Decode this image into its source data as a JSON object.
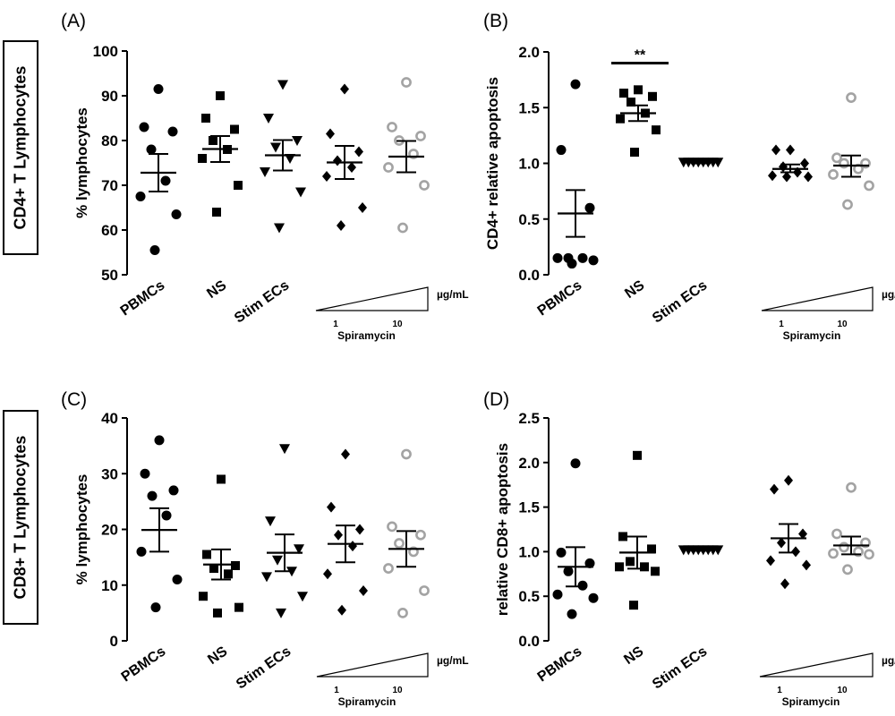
{
  "row_labels": {
    "top": "CD4+ T Lymphocytes",
    "bottom": "CD8+ T Lymphocytes"
  },
  "group_labels": [
    "PBMCs",
    "NS",
    "Stim ECs"
  ],
  "spiramycin": {
    "unit": "µg/mL",
    "low": "1",
    "high": "10",
    "label": "Spiramycin"
  },
  "colors": {
    "black": "#000000",
    "gray": "#a3a3a3"
  },
  "chart_data": [
    {
      "panel": "(A)",
      "type": "scatter",
      "ylabel": "% lymphocytes",
      "ylim": [
        50,
        100
      ],
      "yticks": [
        "50",
        "60",
        "70",
        "80",
        "90",
        "100"
      ],
      "series": [
        {
          "name": "PBMCs",
          "marker": "circle",
          "values": [
            91.5,
            83,
            82,
            78,
            71,
            67.5,
            63.5,
            55.5
          ],
          "mean": 72.8,
          "sem_low": 68.6,
          "sem_high": 77
        },
        {
          "name": "NS",
          "marker": "square",
          "values": [
            90,
            85,
            82.5,
            80,
            78,
            76,
            70,
            64
          ],
          "mean": 78.1,
          "sem_low": 75.2,
          "sem_high": 81
        },
        {
          "name": "Stim ECs",
          "marker": "triangle-down",
          "values": [
            92.5,
            85,
            80,
            78.5,
            76,
            73,
            68.5,
            60.5
          ],
          "mean": 76.7,
          "sem_low": 73.3,
          "sem_high": 80.1
        },
        {
          "name": "Spiramycin 1",
          "marker": "diamond",
          "values": [
            91.5,
            81.5,
            77.5,
            75.5,
            74,
            72,
            65,
            61
          ],
          "mean": 75.1,
          "sem_low": 71.4,
          "sem_high": 78.8
        },
        {
          "name": "Spiramycin 10",
          "marker": "open-circle",
          "values": [
            93,
            83,
            81,
            80,
            77,
            74,
            70,
            60.5
          ],
          "mean": 76.4,
          "sem_low": 72.9,
          "sem_high": 79.9
        }
      ]
    },
    {
      "panel": "(B)",
      "type": "scatter",
      "ylabel": "CD4+ relative apoptosis",
      "ylim": [
        0,
        2
      ],
      "yticks": [
        "0.0",
        "0.5",
        "1.0",
        "1.5",
        "2.0"
      ],
      "significance": {
        "label": "**",
        "from": 0,
        "to": 1,
        "y": 1.9
      },
      "series": [
        {
          "name": "PBMCs",
          "marker": "circle",
          "values": [
            1.71,
            1.12,
            0.6,
            0.15,
            0.15,
            0.15,
            0.13,
            0.1
          ],
          "mean": 0.55,
          "sem_low": 0.34,
          "sem_high": 0.76
        },
        {
          "name": "NS",
          "marker": "square",
          "values": [
            1.66,
            1.63,
            1.6,
            1.55,
            1.45,
            1.4,
            1.3,
            1.1
          ],
          "mean": 1.45,
          "sem_low": 1.38,
          "sem_high": 1.52
        },
        {
          "name": "Stim ECs",
          "marker": "triangle-down",
          "values": [
            1.01,
            1.01,
            1.01,
            1.01,
            1.01,
            1.01,
            1.01,
            1.01
          ],
          "mean": 1.01,
          "sem_low": 1.0,
          "sem_high": 1.02
        },
        {
          "name": "Spiramycin 1",
          "marker": "diamond",
          "values": [
            1.12,
            1.12,
            1.0,
            0.97,
            0.92,
            0.89,
            0.88,
            0.88
          ],
          "mean": 0.95,
          "sem_low": 0.92,
          "sem_high": 0.99
        },
        {
          "name": "Spiramycin 10",
          "marker": "open-circle",
          "values": [
            1.59,
            1.05,
            1.0,
            1.0,
            0.95,
            0.9,
            0.8,
            0.63
          ],
          "mean": 0.98,
          "sem_low": 0.88,
          "sem_high": 1.07
        }
      ]
    },
    {
      "panel": "(C)",
      "type": "scatter",
      "ylabel": "% lymphocytes",
      "ylim": [
        0,
        40
      ],
      "yticks": [
        "0",
        "10",
        "20",
        "30",
        "40"
      ],
      "series": [
        {
          "name": "PBMCs",
          "marker": "circle",
          "values": [
            36,
            30,
            27,
            26,
            22.5,
            16,
            11,
            6
          ],
          "mean": 19.9,
          "sem_low": 16,
          "sem_high": 23.8
        },
        {
          "name": "NS",
          "marker": "square",
          "values": [
            29,
            15.5,
            13.5,
            13,
            12,
            8,
            6,
            5
          ],
          "mean": 13.7,
          "sem_low": 11,
          "sem_high": 16.4
        },
        {
          "name": "Stim ECs",
          "marker": "triangle-down",
          "values": [
            34.5,
            21.5,
            16.5,
            14.5,
            12.5,
            11.5,
            8,
            5
          ],
          "mean": 15.8,
          "sem_low": 12.5,
          "sem_high": 19.1
        },
        {
          "name": "Spiramycin 1",
          "marker": "diamond",
          "values": [
            33.5,
            24,
            20,
            19,
            17,
            12,
            9,
            5.5
          ],
          "mean": 17.4,
          "sem_low": 14.1,
          "sem_high": 20.7
        },
        {
          "name": "Spiramycin 10",
          "marker": "open-circle",
          "values": [
            33.5,
            20.5,
            19,
            17.5,
            16,
            13,
            9,
            5
          ],
          "mean": 16.5,
          "sem_low": 13.3,
          "sem_high": 19.7
        }
      ]
    },
    {
      "panel": "(D)",
      "type": "scatter",
      "ylabel": "relative CD8+ apoptosis",
      "ylim": [
        0,
        2.5
      ],
      "yticks": [
        "0.0",
        "0.5",
        "1.0",
        "1.5",
        "2.0",
        "2.5"
      ],
      "series": [
        {
          "name": "PBMCs",
          "marker": "circle",
          "values": [
            1.99,
            0.99,
            0.87,
            0.78,
            0.62,
            0.52,
            0.48,
            0.3
          ],
          "mean": 0.83,
          "sem_low": 0.61,
          "sem_high": 1.05
        },
        {
          "name": "NS",
          "marker": "square",
          "values": [
            2.08,
            1.17,
            1.03,
            0.89,
            0.83,
            0.83,
            0.78,
            0.4
          ],
          "mean": 0.99,
          "sem_low": 0.81,
          "sem_high": 1.17
        },
        {
          "name": "Stim ECs",
          "marker": "triangle-down",
          "values": [
            1.02,
            1.02,
            1.02,
            1.02,
            1.02,
            1.02,
            1.02,
            1.02
          ],
          "mean": 1.02,
          "sem_low": 1.01,
          "sem_high": 1.03
        },
        {
          "name": "Spiramycin 1",
          "marker": "diamond",
          "values": [
            1.8,
            1.7,
            1.2,
            1.1,
            1.0,
            0.9,
            0.85,
            0.64
          ],
          "mean": 1.15,
          "sem_low": 0.99,
          "sem_high": 1.31
        },
        {
          "name": "Spiramycin 10",
          "marker": "open-circle",
          "values": [
            1.72,
            1.2,
            1.1,
            1.05,
            1.0,
            0.98,
            0.97,
            0.8
          ],
          "mean": 1.07,
          "sem_low": 0.97,
          "sem_high": 1.17
        }
      ]
    }
  ]
}
